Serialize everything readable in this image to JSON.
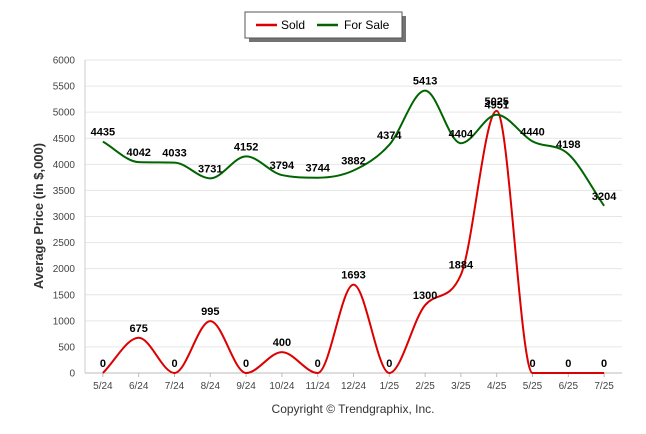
{
  "chart_data": {
    "type": "line",
    "categories": [
      "5/24",
      "6/24",
      "7/24",
      "8/24",
      "9/24",
      "10/24",
      "11/24",
      "12/24",
      "1/25",
      "2/25",
      "3/25",
      "4/25",
      "5/25",
      "6/25",
      "7/25"
    ],
    "series": [
      {
        "name": "Sold",
        "color": "#dd0000",
        "values": [
          0,
          675,
          0,
          995,
          0,
          400,
          0,
          1693,
          0,
          1300,
          1884,
          5025,
          0,
          0,
          0
        ]
      },
      {
        "name": "For Sale",
        "color": "#006400",
        "values": [
          4435,
          4042,
          4033,
          3731,
          4152,
          3794,
          3744,
          3882,
          4374,
          5413,
          4404,
          4951,
          4440,
          4198,
          3204
        ]
      }
    ],
    "ylabel": "Average Price (in $,000)",
    "ylim": [
      0,
      6000
    ],
    "yticks": [
      "0",
      "500",
      "1000",
      "1500",
      "2000",
      "2500",
      "3000",
      "3500",
      "4000",
      "4500",
      "5000",
      "5500",
      "6000"
    ],
    "grid": true,
    "legend": "top-center"
  },
  "footer": {
    "copyright": "Copyright © Trendgraphix, Inc."
  }
}
